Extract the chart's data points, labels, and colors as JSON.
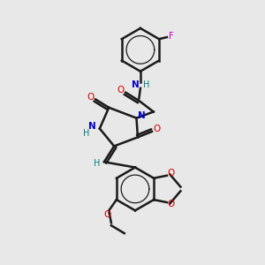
{
  "bg_color": "#e8e8e8",
  "bond_color": "#1a1a1a",
  "N_color": "#0000cc",
  "O_color": "#cc0000",
  "F_color": "#cc00cc",
  "H_color": "#008080",
  "figsize": [
    3.0,
    3.0
  ],
  "dpi": 100,
  "xlim": [
    0,
    10
  ],
  "ylim": [
    0,
    10
  ]
}
